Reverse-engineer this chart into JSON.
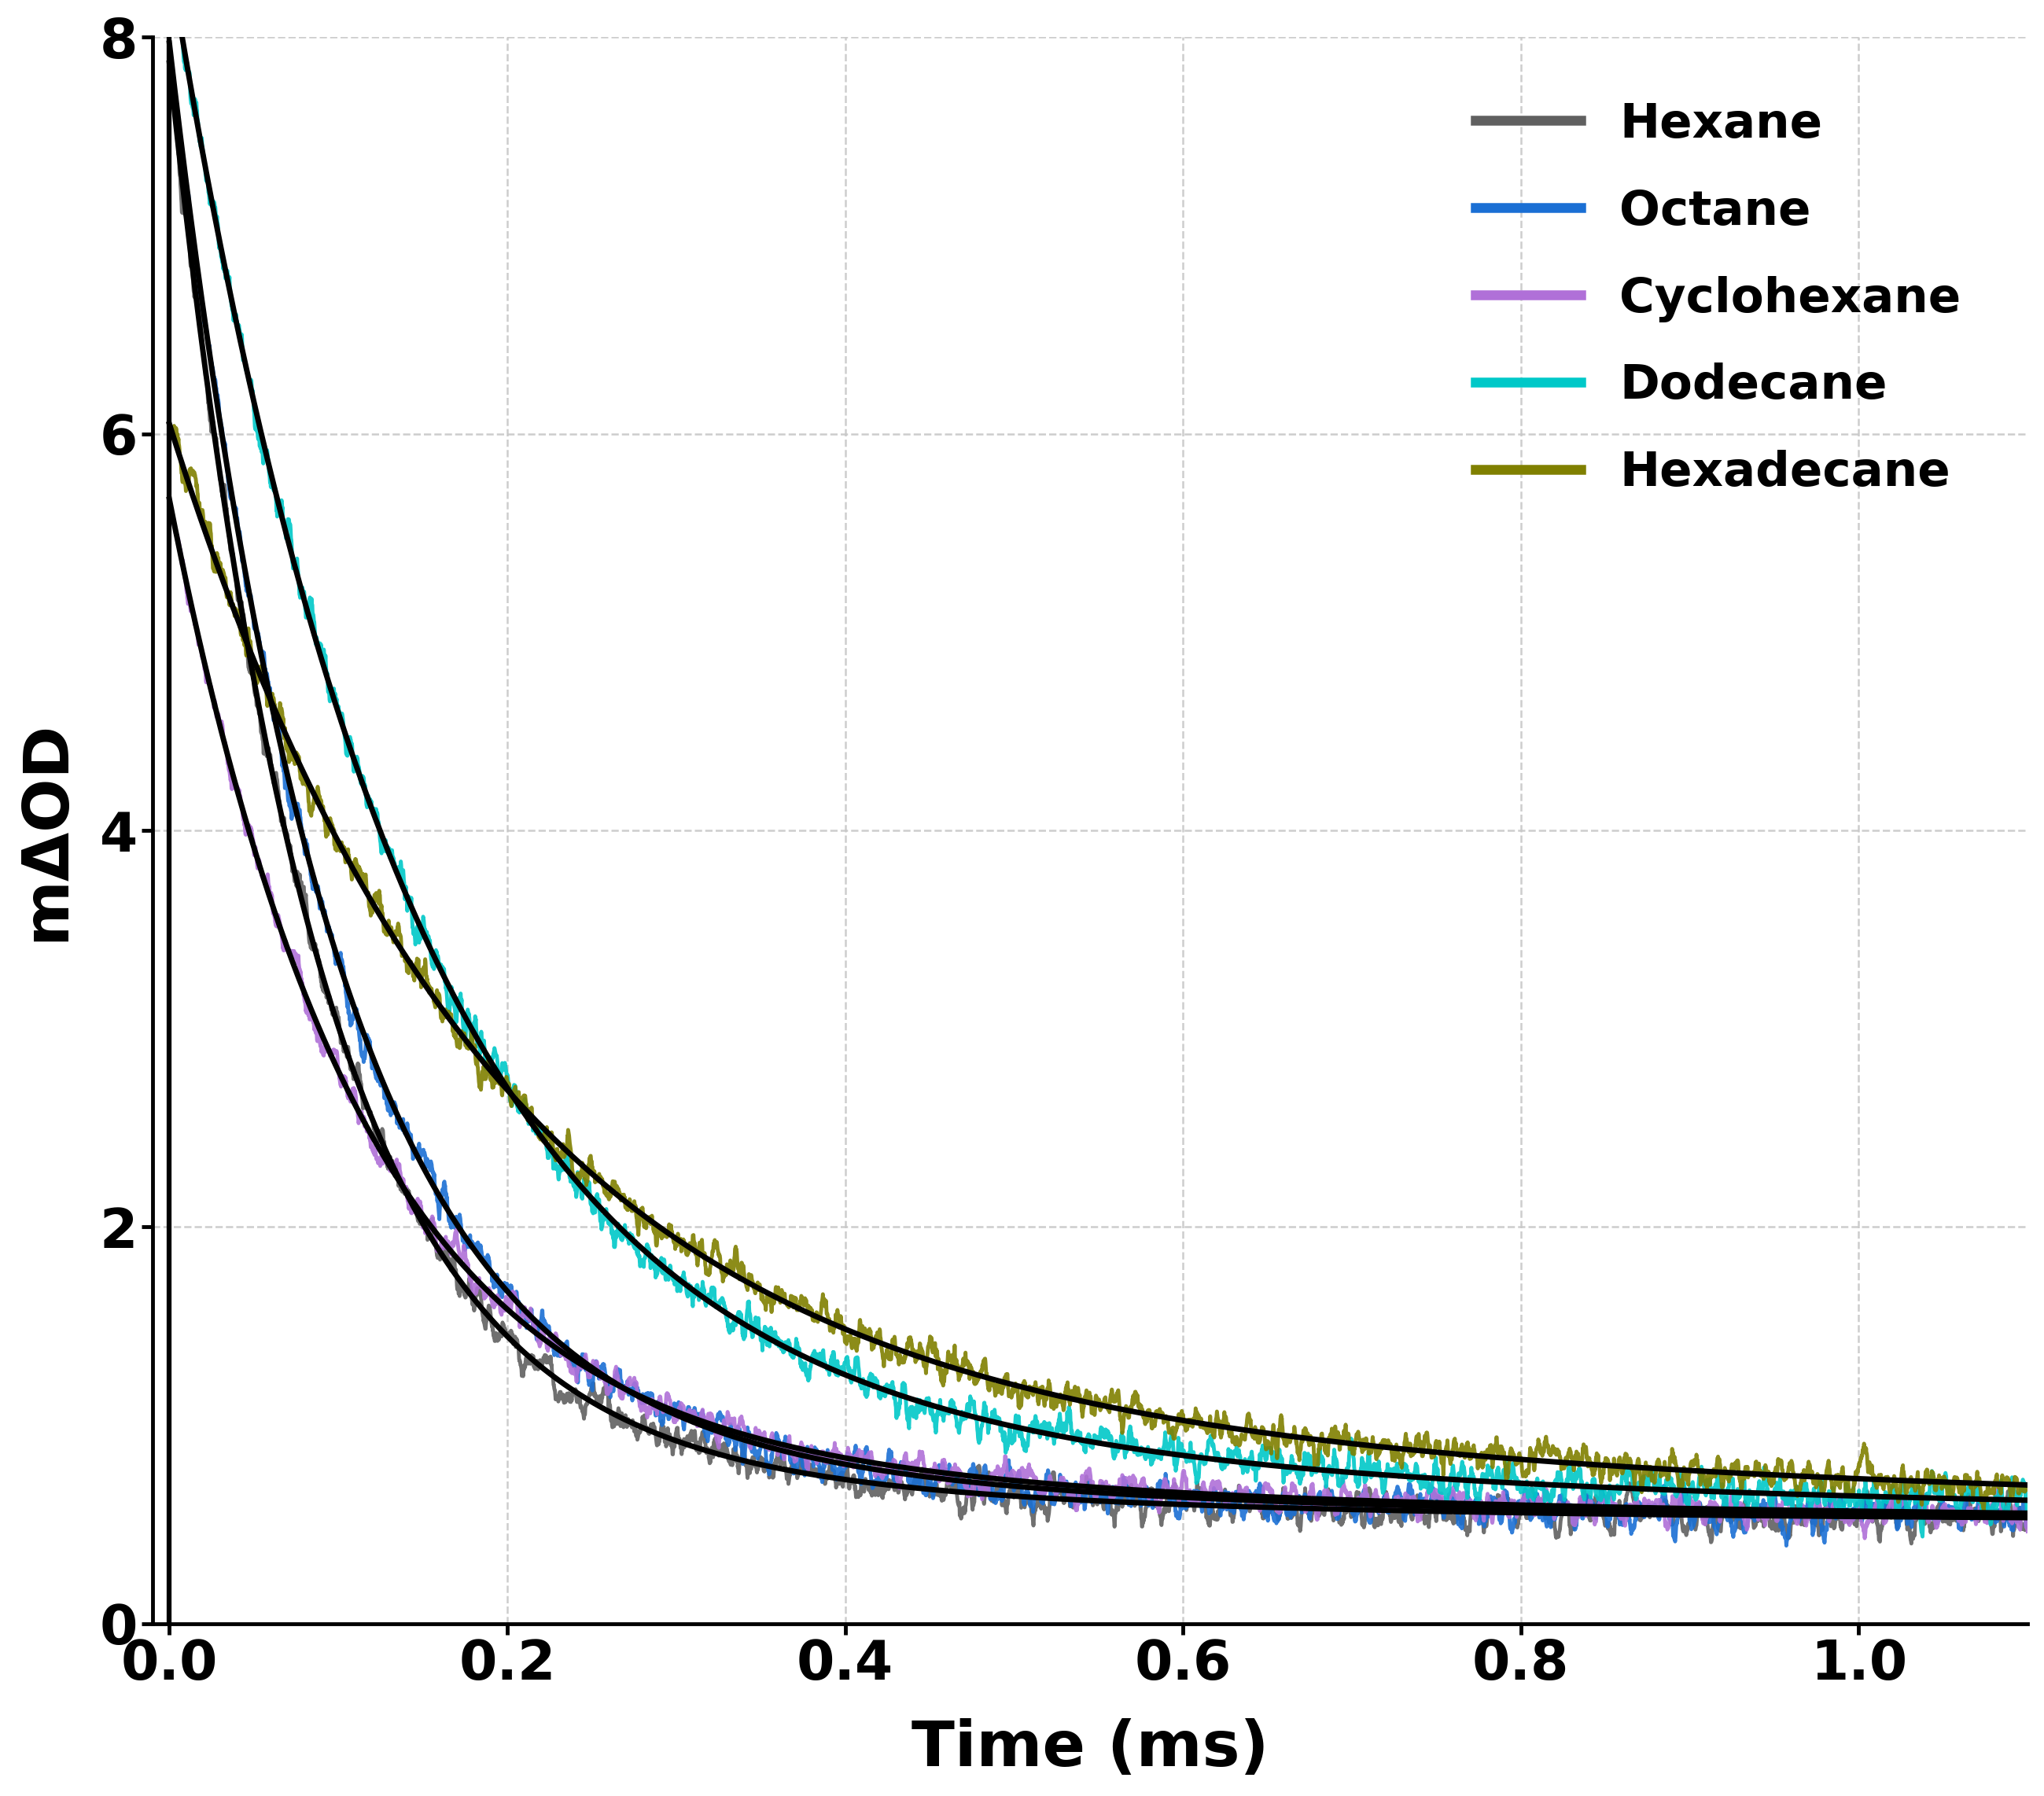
{
  "title": "",
  "xlabel": "Time (ms)",
  "ylabel": "mΔOD",
  "xlim": [
    -0.01,
    1.1
  ],
  "ylim": [
    0,
    8
  ],
  "yticks": [
    0,
    2,
    4,
    6,
    8
  ],
  "xticks": [
    0.0,
    0.2,
    0.4,
    0.6,
    0.8,
    1.0
  ],
  "background_color": "#ffffff",
  "grid_color": "#c8c8c8",
  "solvents": [
    {
      "name": "Hexane",
      "color": "#606060",
      "A1": 6.8,
      "tau1": 0.085,
      "A2": 0.55,
      "tau2": 0.3,
      "C": 0.52,
      "noise": 0.12,
      "noise_smooth": 15
    },
    {
      "name": "Octane",
      "color": "#1a6fd4",
      "A1": 6.9,
      "tau1": 0.095,
      "A2": 0.55,
      "tau2": 0.36,
      "C": 0.52,
      "noise": 0.12,
      "noise_smooth": 15
    },
    {
      "name": "Cyclohexane",
      "color": "#b070d8",
      "A1": 4.65,
      "tau1": 0.11,
      "A2": 0.5,
      "tau2": 0.42,
      "C": 0.52,
      "noise": 0.1,
      "noise_smooth": 15
    },
    {
      "name": "Dodecane",
      "color": "#00c8c8",
      "A1": 7.25,
      "tau1": 0.14,
      "A2": 0.62,
      "tau2": 0.6,
      "C": 0.52,
      "noise": 0.11,
      "noise_smooth": 12
    },
    {
      "name": "Hexadecane",
      "color": "#808000",
      "A1": 4.85,
      "tau1": 0.185,
      "A2": 0.68,
      "tau2": 0.78,
      "C": 0.52,
      "noise": 0.1,
      "noise_smooth": 12
    }
  ],
  "fit_color": "#000000",
  "fit_linewidth": 5.0,
  "data_linewidth": 3.5,
  "legend_fontsize": 44,
  "axis_label_fontsize": 58,
  "tick_fontsize": 50,
  "legend_linewidth": 9
}
